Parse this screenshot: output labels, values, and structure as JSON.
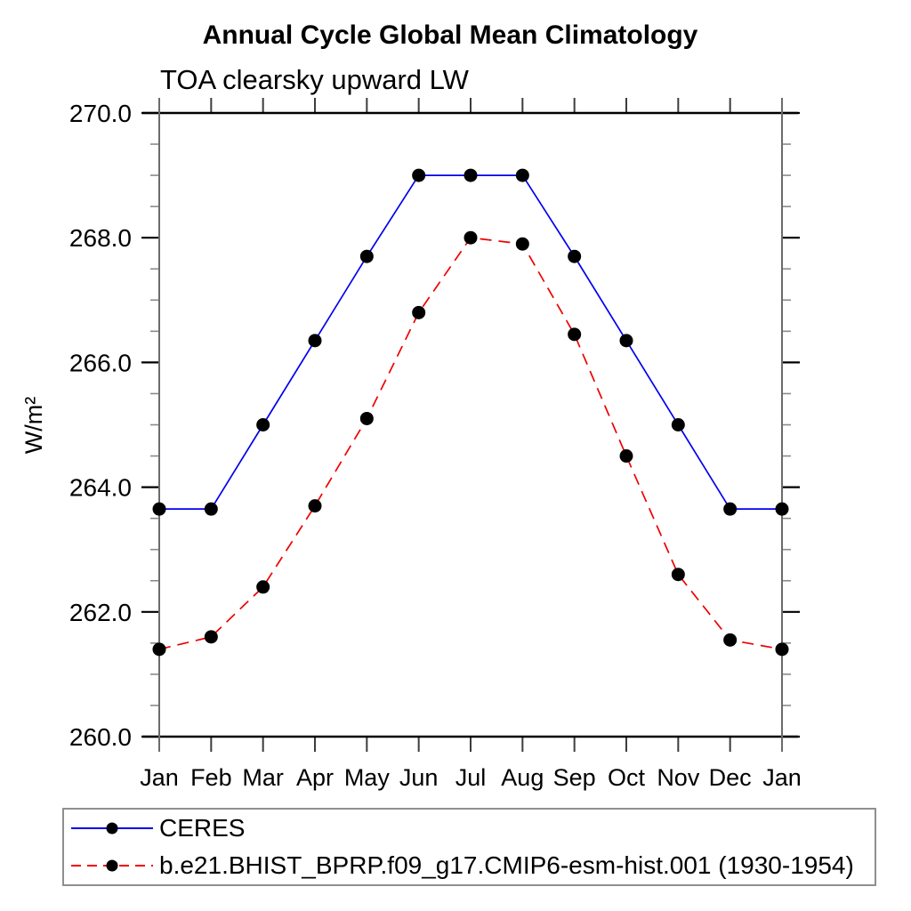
{
  "header": {
    "title": "Annual Cycle Global Mean Climatology",
    "subtitle": "TOA clearsky upward LW"
  },
  "axes": {
    "ylabel": "W/m²",
    "x_tick_labels": [
      "Jan",
      "Feb",
      "Mar",
      "Apr",
      "May",
      "Jun",
      "Jul",
      "Aug",
      "Sep",
      "Oct",
      "Nov",
      "Dec",
      "Jan"
    ],
    "y_tick_labels": [
      "260.0",
      "262.0",
      "264.0",
      "266.0",
      "268.0",
      "270.0"
    ]
  },
  "legend": {
    "items": [
      {
        "label": "CERES",
        "color": "#0000ee",
        "line_style": "solid",
        "marker": "black-dot"
      },
      {
        "label": "b.e21.BHIST_BPRP.f09_g17.CMIP6-esm-hist.001 (1930-1954)",
        "color": "#ee0000",
        "line_style": "dashed",
        "marker": "black-dot"
      }
    ]
  },
  "colors": {
    "ceres_line": "#0000ee",
    "model_line": "#ee0000",
    "marker_dot": "#000000",
    "axis_frame": "#000000",
    "axis_vertical": "#6b6b6b",
    "minor_tick": "#8a8a8a",
    "x_tick": "#3c3c3c"
  },
  "chart_data": {
    "type": "line",
    "title": "Annual Cycle Global Mean Climatology",
    "subtitle": "TOA clearsky upward LW",
    "xlabel": "",
    "ylabel": "W/m²",
    "categories": [
      "Jan",
      "Feb",
      "Mar",
      "Apr",
      "May",
      "Jun",
      "Jul",
      "Aug",
      "Sep",
      "Oct",
      "Nov",
      "Dec",
      "Jan"
    ],
    "series": [
      {
        "name": "CERES",
        "color": "#0000ee",
        "line_style": "solid",
        "marker": "black-dot",
        "values": [
          263.65,
          263.65,
          265.0,
          266.35,
          267.7,
          269.0,
          269.0,
          269.0,
          267.7,
          266.35,
          265.0,
          263.65,
          263.65
        ]
      },
      {
        "name": "b.e21.BHIST_BPRP.f09_g17.CMIP6-esm-hist.001 (1930-1954)",
        "color": "#ee0000",
        "line_style": "dashed",
        "marker": "black-dot",
        "values": [
          261.4,
          261.6,
          262.4,
          263.7,
          265.1,
          266.8,
          268.0,
          267.9,
          266.45,
          264.5,
          262.6,
          261.55,
          261.4
        ]
      }
    ],
    "ylim": [
      260.0,
      270.0
    ],
    "y_major_step": 2.0,
    "y_minor_step": 0.5,
    "grid": false,
    "legend_position": "bottom-left-box"
  }
}
